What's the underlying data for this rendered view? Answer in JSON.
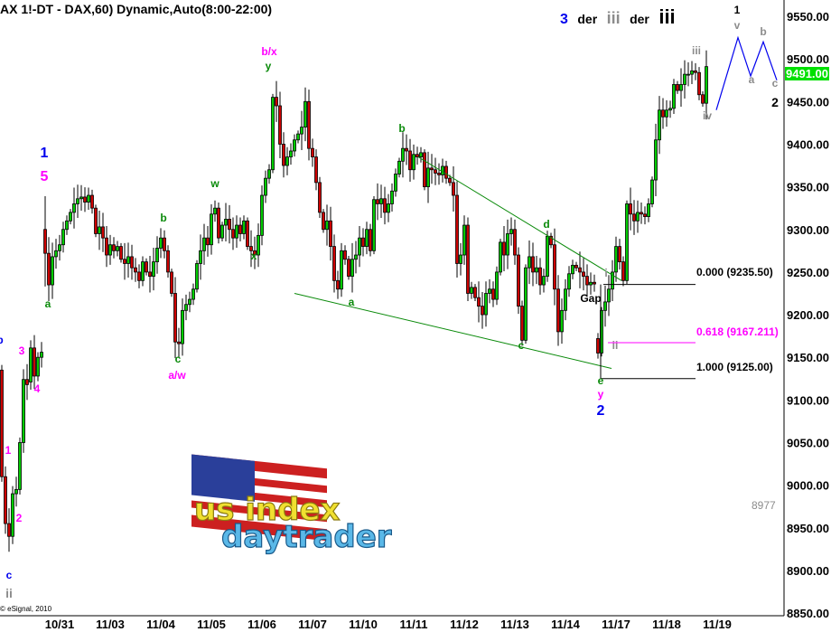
{
  "title": "AX 1!-DT - DAX,60) Dynamic,Auto(8:00-22:00)",
  "header": {
    "part1": "3",
    "part2": "der",
    "part3": "iii",
    "part4": "der",
    "part5": "iii"
  },
  "copyright": "© eSignal, 2010",
  "last_price": "9491.00",
  "side_note": "8977",
  "colors": {
    "up": "#00cc00",
    "down": "#cc0000",
    "trendline": "#0a8a0a",
    "projection": "#0000ee",
    "fib_mid": "#ff00ff",
    "last_price_bg": "#00e000"
  },
  "logo": {
    "line1": "us index",
    "line2": "daytrader"
  },
  "chart_data": {
    "type": "candlestick",
    "title": "AX 1!-DT - DAX,60) Dynamic,Auto(8:00-22:00)",
    "ylim": [
      8850,
      9570
    ],
    "y_ticks": [
      "8850.00",
      "8900.00",
      "8950.00",
      "9000.00",
      "9050.00",
      "9100.00",
      "9150.00",
      "9200.00",
      "9250.00",
      "9300.00",
      "9350.00",
      "9400.00",
      "9450.00",
      "9500.00",
      "9550.00"
    ],
    "x_ticks": [
      "10/31",
      "11/03",
      "11/04",
      "11/05",
      "11/06",
      "11/07",
      "11/10",
      "11/11",
      "11/12",
      "11/13",
      "11/14",
      "11/17",
      "11/18",
      "11/19"
    ],
    "prior_segment_oc": [
      [
        9135,
        9010
      ],
      [
        9010,
        8955
      ],
      [
        8955,
        8940
      ],
      [
        8940,
        8990
      ],
      [
        8990,
        8995
      ],
      [
        8995,
        9050
      ],
      [
        9050,
        9124
      ],
      [
        9124,
        9118
      ],
      [
        9121,
        9161
      ],
      [
        9161,
        9128
      ],
      [
        9128,
        9150
      ],
      [
        9150,
        9156
      ]
    ],
    "first_open": 9300,
    "closes": [
      9272,
      9235,
      9268,
      9275,
      9282,
      9300,
      9310,
      9320,
      9330,
      9336,
      9338,
      9332,
      9340,
      9325,
      9295,
      9303,
      9290,
      9270,
      9282,
      9275,
      9280,
      9265,
      9260,
      9268,
      9255,
      9250,
      9240,
      9262,
      9250,
      9245,
      9262,
      9278,
      9290,
      9275,
      9250,
      9225,
      9168,
      9166,
      9205,
      9212,
      9218,
      9230,
      9260,
      9275,
      9290,
      9282,
      9318,
      9325,
      9290,
      9305,
      9312,
      9300,
      9290,
      9305,
      9295,
      9310,
      9280,
      9275,
      9270,
      9293,
      9340,
      9360,
      9370,
      9455,
      9445,
      9400,
      9375,
      9385,
      9392,
      9405,
      9412,
      9420,
      9450,
      9395,
      9385,
      9355,
      9320,
      9300,
      9310,
      9280,
      9240,
      9230,
      9275,
      9265,
      9245,
      9265,
      9270,
      9290,
      9280,
      9300,
      9275,
      9335,
      9330,
      9336,
      9320,
      9330,
      9345,
      9365,
      9380,
      9395,
      9392,
      9370,
      9388,
      9385,
      9390,
      9350,
      9372,
      9370,
      9366,
      9364,
      9374,
      9360,
      9355,
      9340,
      9260,
      9270,
      9305,
      9225,
      9232,
      9220,
      9210,
      9200,
      9225,
      9230,
      9218,
      9250,
      9285,
      9270,
      9295,
      9300,
      9270,
      9210,
      9170,
      9255,
      9268,
      9250,
      9255,
      9235,
      9245,
      9292,
      9282,
      9230,
      9180,
      9205,
      9230,
      9248,
      9258,
      9255,
      9250,
      9245,
      9235,
      9238,
      9236,
      9155,
      9205,
      9215,
      9230,
      9250,
      9280,
      9262,
      9240,
      9330,
      9318,
      9310,
      9320,
      9318,
      9315,
      9330,
      9358,
      9405,
      9440,
      9432,
      9440,
      9442,
      9470,
      9463,
      9470,
      9482,
      9482,
      9486,
      9484,
      9458,
      9448,
      9491
    ],
    "gap_open_index": 153,
    "gap_open": 9172,
    "fibonacci": [
      {
        "label": "0.000 (9235.50)",
        "level": 9235.5
      },
      {
        "label": "0.618 (9167.211)",
        "level": 9167.211
      },
      {
        "label": "1.000 (9125.00)",
        "level": 9125.0
      }
    ],
    "trendlines": [
      {
        "from": [
          "11/11",
          9385
        ],
        "to": [
          "11/17",
          9240
        ]
      },
      {
        "from": [
          "11/07",
          9225
        ],
        "to": [
          "11/14",
          9137
        ]
      }
    ],
    "projection": [
      9440,
      9525,
      9480,
      9520,
      9475
    ],
    "annotations": {
      "l_b": "b",
      "l_3": "3",
      "l_4": "4",
      "l_1": "1",
      "l_2": "2",
      "l_c": "c",
      "l_ii": "ii",
      "w1": "1",
      "w5": "5",
      "a1": "a",
      "b1": "b",
      "c1": "c",
      "aw": "a/w",
      "w": "w",
      "x": "x",
      "bx": "b/x",
      "y1": "y",
      "a2": "a",
      "b2": "b",
      "c2": "c",
      "d": "d",
      "gap": "Gap",
      "i": "i",
      "ii": "ii",
      "e": "e",
      "y2": "y",
      "two": "2",
      "iii": "iii",
      "iv": "iv",
      "v": "v",
      "one": "1",
      "pa": "a",
      "pb": "b",
      "pc": "c",
      "ptwo": "2"
    }
  }
}
